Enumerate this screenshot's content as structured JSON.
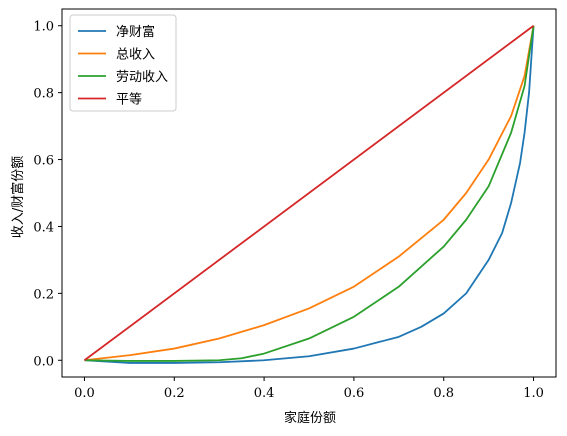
{
  "chart_data": {
    "type": "line",
    "xlabel": "家庭份额",
    "ylabel": "收入/财富份额",
    "xlim": [
      -0.05,
      1.05
    ],
    "ylim": [
      -0.05,
      1.05
    ],
    "xticks": [
      "0.0",
      "0.2",
      "0.4",
      "0.6",
      "0.8",
      "1.0"
    ],
    "yticks": [
      "0.0",
      "0.2",
      "0.4",
      "0.6",
      "0.8",
      "1.0"
    ],
    "grid": false,
    "legend_position": "top-left",
    "series": [
      {
        "name": "净财富",
        "color": "#1f77b4",
        "x": [
          0,
          0.1,
          0.2,
          0.3,
          0.4,
          0.5,
          0.6,
          0.7,
          0.75,
          0.8,
          0.85,
          0.9,
          0.93,
          0.95,
          0.97,
          0.98,
          0.99,
          0.995,
          1.0
        ],
        "y": [
          0,
          -0.008,
          -0.008,
          -0.006,
          0.0,
          0.012,
          0.035,
          0.07,
          0.1,
          0.14,
          0.2,
          0.3,
          0.38,
          0.47,
          0.59,
          0.68,
          0.8,
          0.9,
          1.0
        ]
      },
      {
        "name": "总收入",
        "color": "#ff7f0e",
        "x": [
          0,
          0.1,
          0.2,
          0.3,
          0.4,
          0.5,
          0.6,
          0.7,
          0.8,
          0.85,
          0.9,
          0.95,
          0.98,
          1.0
        ],
        "y": [
          0,
          0.015,
          0.035,
          0.065,
          0.105,
          0.155,
          0.22,
          0.31,
          0.42,
          0.5,
          0.6,
          0.73,
          0.85,
          1.0
        ]
      },
      {
        "name": "劳动收入",
        "color": "#2ca02c",
        "x": [
          0,
          0.1,
          0.2,
          0.3,
          0.35,
          0.4,
          0.5,
          0.6,
          0.7,
          0.8,
          0.85,
          0.9,
          0.95,
          0.98,
          1.0
        ],
        "y": [
          0,
          -0.002,
          -0.002,
          0.0,
          0.006,
          0.02,
          0.065,
          0.13,
          0.22,
          0.34,
          0.42,
          0.52,
          0.68,
          0.82,
          1.0
        ]
      },
      {
        "name": "平等",
        "color": "#d62728",
        "x": [
          0,
          1.0
        ],
        "y": [
          0,
          1.0
        ]
      }
    ]
  }
}
